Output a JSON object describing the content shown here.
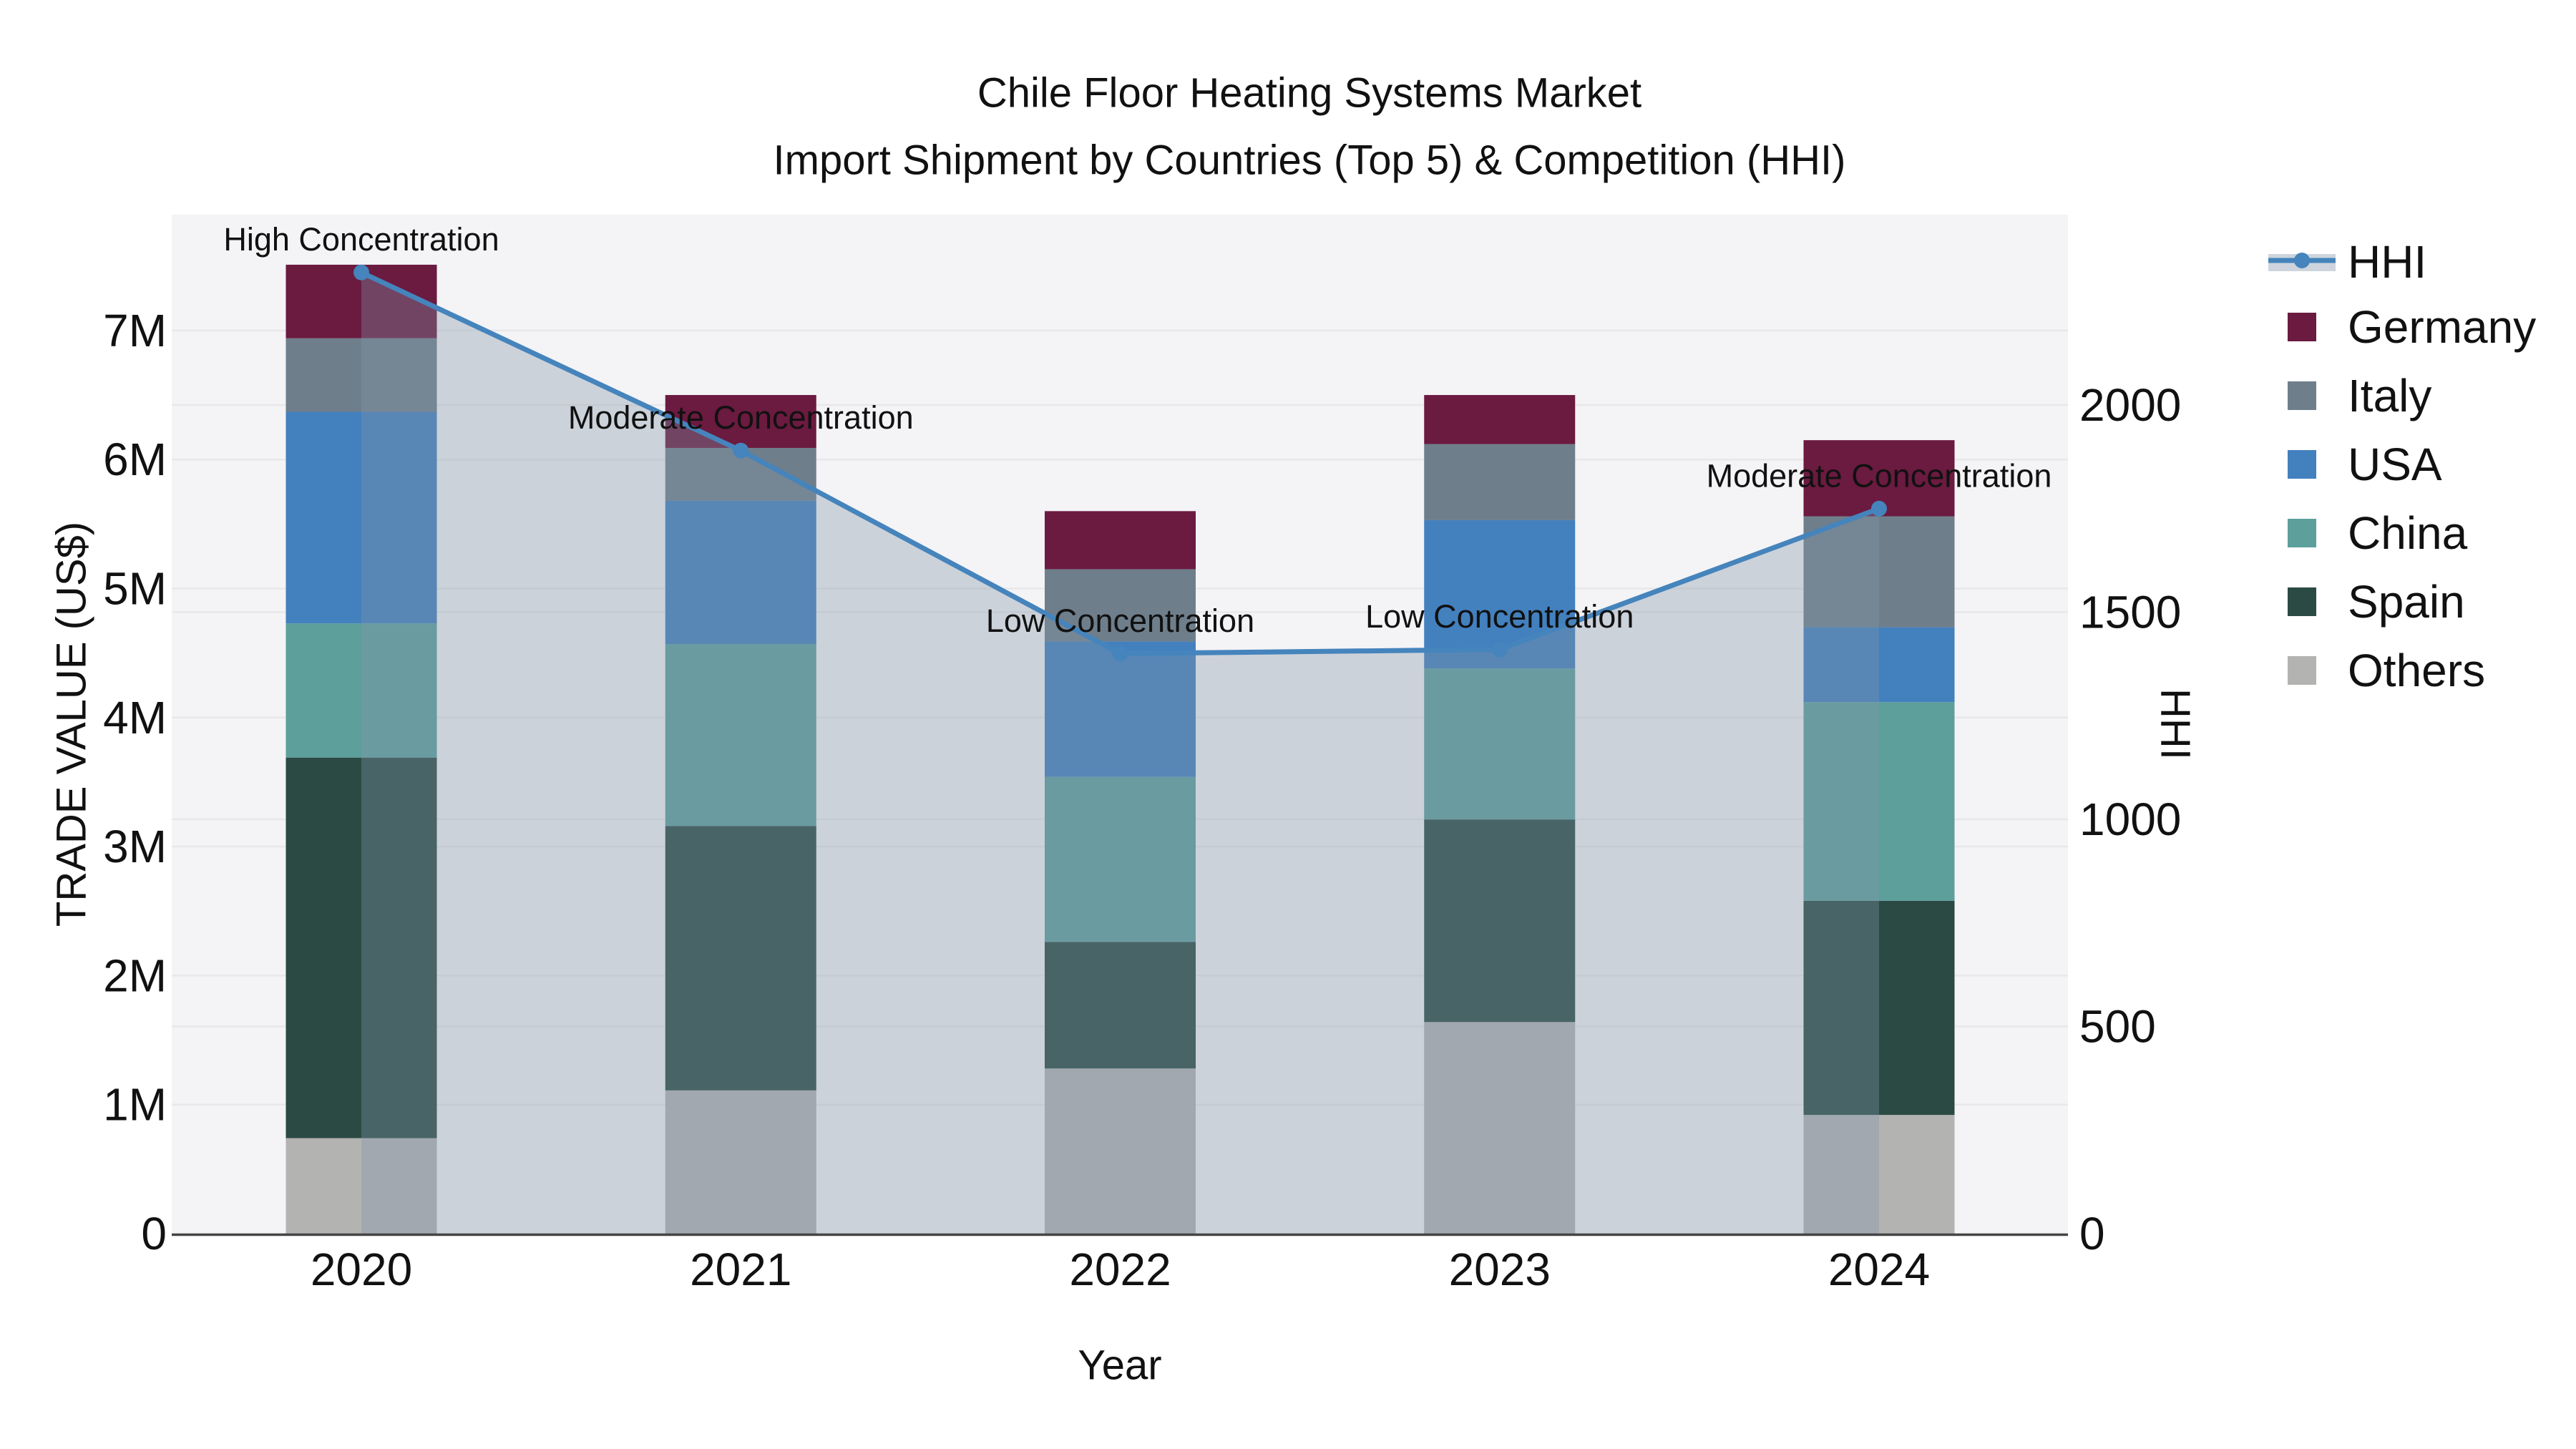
{
  "title": {
    "line1": "Chile Floor Heating Systems Market",
    "line2": "Import Shipment by Countries (Top 5) & Competition (HHI)"
  },
  "chart_data": {
    "type": "combo",
    "subtype": "stacked-bar with line on secondary axis",
    "categories": [
      "2020",
      "2021",
      "2022",
      "2023",
      "2024"
    ],
    "bar_unit": "US$",
    "bar_series": [
      {
        "name": "Germany",
        "color": "#6B1A40",
        "values": [
          570000,
          410000,
          450000,
          380000,
          590000
        ]
      },
      {
        "name": "Italy",
        "color": "#6F7E8B",
        "values": [
          570000,
          410000,
          560000,
          590000,
          860000
        ]
      },
      {
        "name": "USA",
        "color": "#4380BE",
        "values": [
          1640000,
          1110000,
          1050000,
          1150000,
          580000
        ]
      },
      {
        "name": "China",
        "color": "#5C9F9B",
        "values": [
          1040000,
          1410000,
          1280000,
          1170000,
          1540000
        ]
      },
      {
        "name": "Spain",
        "color": "#2A4A43",
        "values": [
          2950000,
          2050000,
          980000,
          1570000,
          1660000
        ]
      },
      {
        "name": "Others",
        "color": "#B3B3B2",
        "values": [
          740000,
          1110000,
          1280000,
          1640000,
          920000
        ]
      }
    ],
    "stack_order_bottom_to_top": [
      "Others",
      "Spain",
      "China",
      "USA",
      "Italy",
      "Germany"
    ],
    "bar_totals": [
      7510000,
      6500000,
      5600000,
      6500000,
      6150000
    ],
    "line_series": {
      "name": "HHI",
      "color": "#4584BC",
      "area_fill": "rgba(130,148,170,0.35)",
      "values": [
        2320,
        1890,
        1400,
        1410,
        1750
      ]
    },
    "annotations": [
      {
        "category": "2020",
        "text": "High Concentration"
      },
      {
        "category": "2021",
        "text": "Moderate Concentration"
      },
      {
        "category": "2022",
        "text": "Low Concentration"
      },
      {
        "category": "2023",
        "text": "Low Concentration"
      },
      {
        "category": "2024",
        "text": "Moderate Concentration"
      }
    ],
    "y_left": {
      "label": "TRADE VALUE (US$)",
      "tick_labels": [
        "0",
        "1M",
        "2M",
        "3M",
        "4M",
        "5M",
        "6M",
        "7M"
      ],
      "tick_values": [
        0,
        1000000,
        2000000,
        3000000,
        4000000,
        5000000,
        6000000,
        7000000
      ],
      "range_max": 7900000
    },
    "y_right": {
      "label": "HHI",
      "tick_labels": [
        "0",
        "500",
        "1000",
        "1500",
        "2000"
      ],
      "tick_values": [
        0,
        500,
        1000,
        1500,
        2000
      ],
      "range_max": 2460
    },
    "x": {
      "label": "Year"
    },
    "grid": {
      "on": true,
      "color": "#E8E8EA"
    },
    "plot_bg": "#F4F3F5",
    "legend_position": "outside-top-right"
  },
  "legend": {
    "items": [
      {
        "label": "HHI",
        "marker": "line",
        "color": "#4584BC",
        "band_color": "#CDD4DD"
      },
      {
        "label": "Germany",
        "marker": "square",
        "color": "#6B1A40"
      },
      {
        "label": "Italy",
        "marker": "square",
        "color": "#6F7E8B"
      },
      {
        "label": "USA",
        "marker": "square",
        "color": "#4380BE"
      },
      {
        "label": "China",
        "marker": "square",
        "color": "#5C9F9B"
      },
      {
        "label": "Spain",
        "marker": "square",
        "color": "#2A4A43"
      },
      {
        "label": "Others",
        "marker": "square",
        "color": "#B3B3B2"
      }
    ]
  }
}
